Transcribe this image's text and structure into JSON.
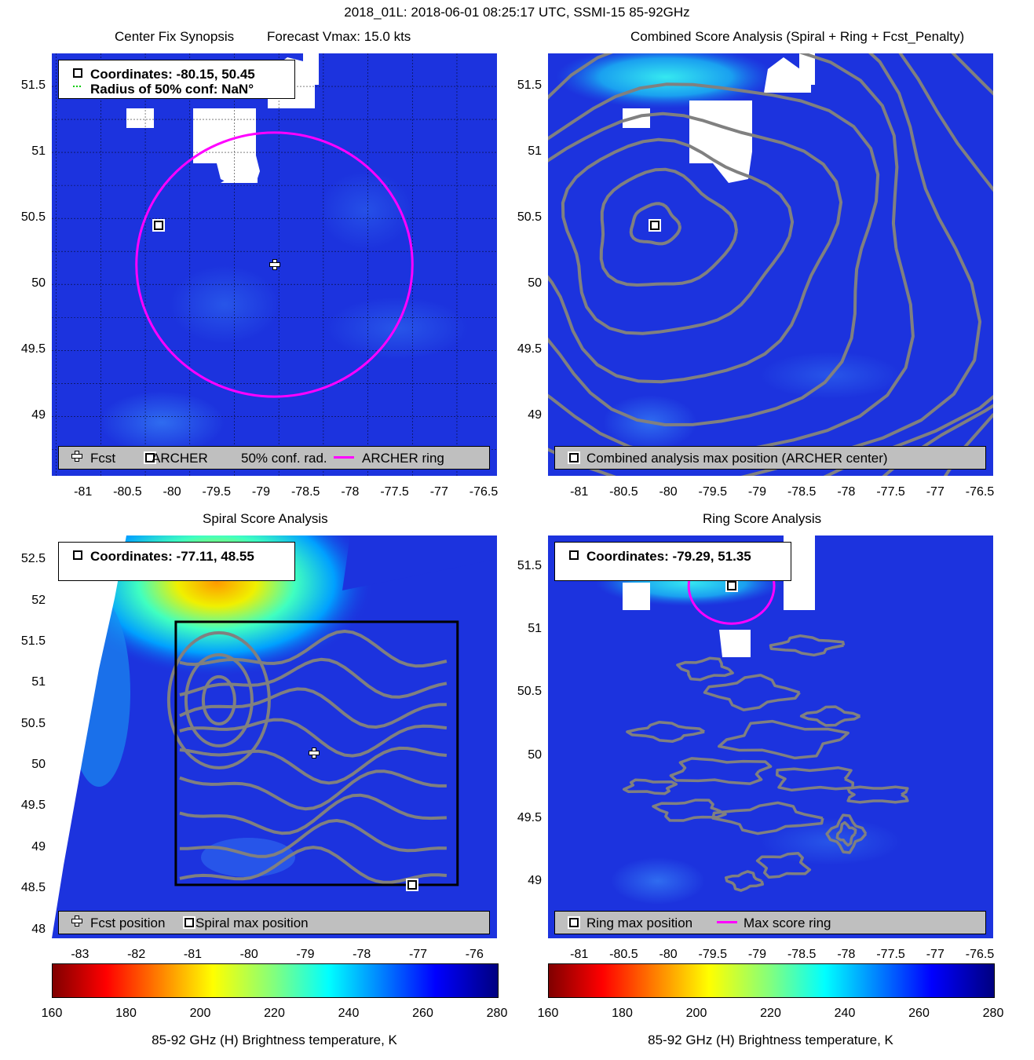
{
  "figure": {
    "suptitle": "2018_01L: 2018-06-01 08:25:17 UTC, SSMI-15 85-92GHz",
    "cbar_label": "85-92 GHz (H) Brightness temperature, K",
    "cbar_ticks": [
      "160",
      "180",
      "200",
      "220",
      "240",
      "260",
      "280"
    ],
    "colormap": [
      "#800000",
      "#ff0000",
      "#ff8000",
      "#ffff00",
      "#80ff80",
      "#00ffff",
      "#0080ff",
      "#0000ff",
      "#000080"
    ],
    "contour_color": "#808080",
    "ring_color": "#ff00ff",
    "background_color": "#1a33dd"
  },
  "panels": {
    "p1": {
      "title_left": "Center Fix Synopsis",
      "title_right": "Forecast Vmax: 15.0 kts",
      "info_line1": "Coordinates: -80.15, 50.45",
      "info_line2": "Radius of 50% conf: NaN°",
      "legend": [
        "Fcst",
        "ARCHER",
        "50% conf. rad.",
        "ARCHER ring"
      ],
      "xticks": [
        "-81",
        "-80.5",
        "-80",
        "-79.5",
        "-79",
        "-78.5",
        "-78",
        "-77.5",
        "-77",
        "-76.5"
      ],
      "yticks": [
        "51.5",
        "51",
        "50.5",
        "50",
        "49.5",
        "49"
      ]
    },
    "p2": {
      "title": "Combined Score Analysis (Spiral + Ring + Fcst_Penalty)",
      "legend": [
        "Combined analysis max position (ARCHER center)"
      ],
      "xticks": [
        "-81",
        "-80.5",
        "-80",
        "-79.5",
        "-79",
        "-78.5",
        "-78",
        "-77.5",
        "-77",
        "-76.5"
      ],
      "yticks": [
        "51.5",
        "51",
        "50.5",
        "50",
        "49.5",
        "49"
      ]
    },
    "p3": {
      "title": "Spiral Score Analysis",
      "info_line1": "Coordinates: -77.11, 48.55",
      "legend": [
        "Fcst position",
        "Spiral max position"
      ],
      "xticks": [
        "-83",
        "-82",
        "-81",
        "-80",
        "-79",
        "-78",
        "-77",
        "-76"
      ],
      "yticks": [
        "52.5",
        "52",
        "51.5",
        "51",
        "50.5",
        "50",
        "49.5",
        "49",
        "48.5",
        "48"
      ]
    },
    "p4": {
      "title": "Ring Score Analysis",
      "info_line1": "Coordinates: -79.29, 51.35",
      "legend": [
        "Ring max position",
        "Max score ring"
      ],
      "xticks": [
        "-81",
        "-80.5",
        "-80",
        "-79.5",
        "-79",
        "-78.5",
        "-78",
        "-77.5",
        "-77",
        "-76.5"
      ],
      "yticks": [
        "51.5",
        "51",
        "50.5",
        "50",
        "49.5",
        "49"
      ]
    }
  },
  "chart_data": [
    {
      "type": "heatmap",
      "title": "Center Fix Synopsis",
      "xlim": [
        -81.35,
        -76.35
      ],
      "ylim": [
        48.55,
        51.75
      ],
      "points": [
        {
          "name": "ARCHER",
          "lon": -80.15,
          "lat": 50.45
        },
        {
          "name": "Fcst",
          "lon": -78.85,
          "lat": 50.15
        }
      ],
      "ring": {
        "center_lon": -78.85,
        "center_lat": 50.15,
        "radius_deg": 1.0
      }
    },
    {
      "type": "heatmap",
      "title": "Combined Score Analysis (Spiral + Ring + Fcst_Penalty)",
      "xlim": [
        -81.35,
        -76.35
      ],
      "ylim": [
        48.55,
        51.75
      ],
      "points": [
        {
          "name": "Combined analysis max position (ARCHER center)",
          "lon": -80.15,
          "lat": 50.45
        }
      ]
    },
    {
      "type": "heatmap",
      "title": "Spiral Score Analysis",
      "xlim": [
        -83.5,
        -75.6
      ],
      "ylim": [
        47.9,
        52.8
      ],
      "points": [
        {
          "name": "Spiral max position",
          "lon": -77.11,
          "lat": 48.55
        },
        {
          "name": "Fcst position",
          "lon": -78.85,
          "lat": 50.15
        }
      ],
      "box": {
        "lon_min": -81.3,
        "lon_max": -76.3,
        "lat_min": 48.55,
        "lat_max": 51.75
      }
    },
    {
      "type": "heatmap",
      "title": "Ring Score Analysis",
      "xlim": [
        -81.35,
        -76.35
      ],
      "ylim": [
        48.55,
        51.75
      ],
      "points": [
        {
          "name": "Ring max position",
          "lon": -79.29,
          "lat": 51.35
        }
      ],
      "ring": {
        "center_lon": -79.29,
        "center_lat": 51.35,
        "radius_deg": 0.3
      }
    }
  ]
}
